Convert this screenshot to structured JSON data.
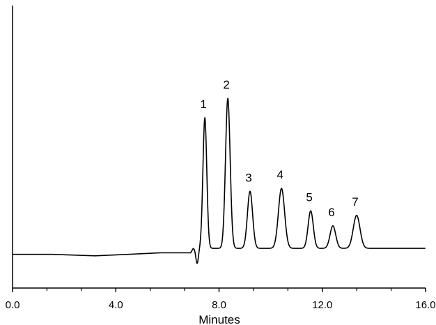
{
  "chart_data": {
    "type": "line",
    "title": "",
    "xlabel": "Minutes",
    "ylabel": "",
    "xlim": [
      0,
      16
    ],
    "ylim": [
      -26.5,
      162
    ],
    "x_ticks": [
      {
        "value": 0,
        "label": "0.0"
      },
      {
        "value": 4,
        "label": "4.0"
      },
      {
        "value": 8,
        "label": "8.0"
      },
      {
        "value": 12,
        "label": "12.0"
      },
      {
        "value": 16,
        "label": "16.0"
      }
    ],
    "minor_tick_step": 1.3333,
    "grid": false,
    "line_color": "#000000",
    "baseline_points": [
      [
        0,
        -4
      ],
      [
        1.5,
        -4
      ],
      [
        3.2,
        -5
      ],
      [
        4.5,
        -4
      ],
      [
        5.7,
        -3
      ],
      [
        6.9,
        -3
      ],
      [
        7.0,
        0
      ],
      [
        16,
        0
      ]
    ],
    "negative_dip": {
      "x": 7.15,
      "height": -10,
      "width": 0.05
    },
    "peaks": [
      {
        "label": "1",
        "x": 7.45,
        "height": 87,
        "width": 0.075
      },
      {
        "label": "2",
        "x": 8.34,
        "height": 100,
        "width": 0.09
      },
      {
        "label": "3",
        "x": 9.2,
        "height": 38,
        "width": 0.1
      },
      {
        "label": "4",
        "x": 10.42,
        "height": 40,
        "width": 0.12
      },
      {
        "label": "5",
        "x": 11.55,
        "height": 25,
        "width": 0.1
      },
      {
        "label": "6",
        "x": 12.41,
        "height": 15,
        "width": 0.11
      },
      {
        "label": "7",
        "x": 13.33,
        "height": 22,
        "width": 0.13
      }
    ]
  }
}
